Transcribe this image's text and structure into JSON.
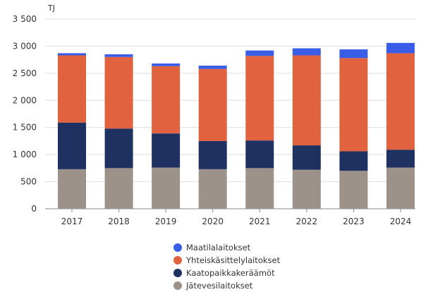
{
  "chart_data": {
    "type": "bar",
    "stacked": true,
    "unit_label": "TJ",
    "categories": [
      "2017",
      "2018",
      "2019",
      "2020",
      "2021",
      "2022",
      "2023",
      "2024"
    ],
    "ylim": [
      0,
      3500
    ],
    "yticks": [
      "0",
      "500",
      "1 000",
      "1 500",
      "2 000",
      "2 500",
      "3 000",
      "3 500"
    ],
    "ytick_values": [
      0,
      500,
      1000,
      1500,
      2000,
      2500,
      3000,
      3500
    ],
    "grid": true,
    "legend_position": "bottom-center",
    "series": [
      {
        "name": "Jätevesilaitokset",
        "color": "#9d928a",
        "values": [
          730,
          750,
          760,
          730,
          750,
          720,
          700,
          760
        ]
      },
      {
        "name": "Kaatopaikkakeräämöt",
        "color": "#1f3160",
        "values": [
          860,
          730,
          630,
          520,
          510,
          450,
          360,
          330
        ]
      },
      {
        "name": "Yhteiskäsittelylaitokset",
        "color": "#e0623f",
        "values": [
          1240,
          1320,
          1240,
          1330,
          1560,
          1660,
          1720,
          1780
        ]
      },
      {
        "name": "Maatilalaitokset",
        "color": "#3a5de8",
        "values": [
          40,
          50,
          50,
          60,
          100,
          130,
          160,
          190
        ]
      }
    ],
    "legend_order": [
      "Maatilalaitokset",
      "Yhteiskäsittelylaitokset",
      "Kaatopaikkakeräämöt",
      "Jätevesilaitokset"
    ]
  }
}
